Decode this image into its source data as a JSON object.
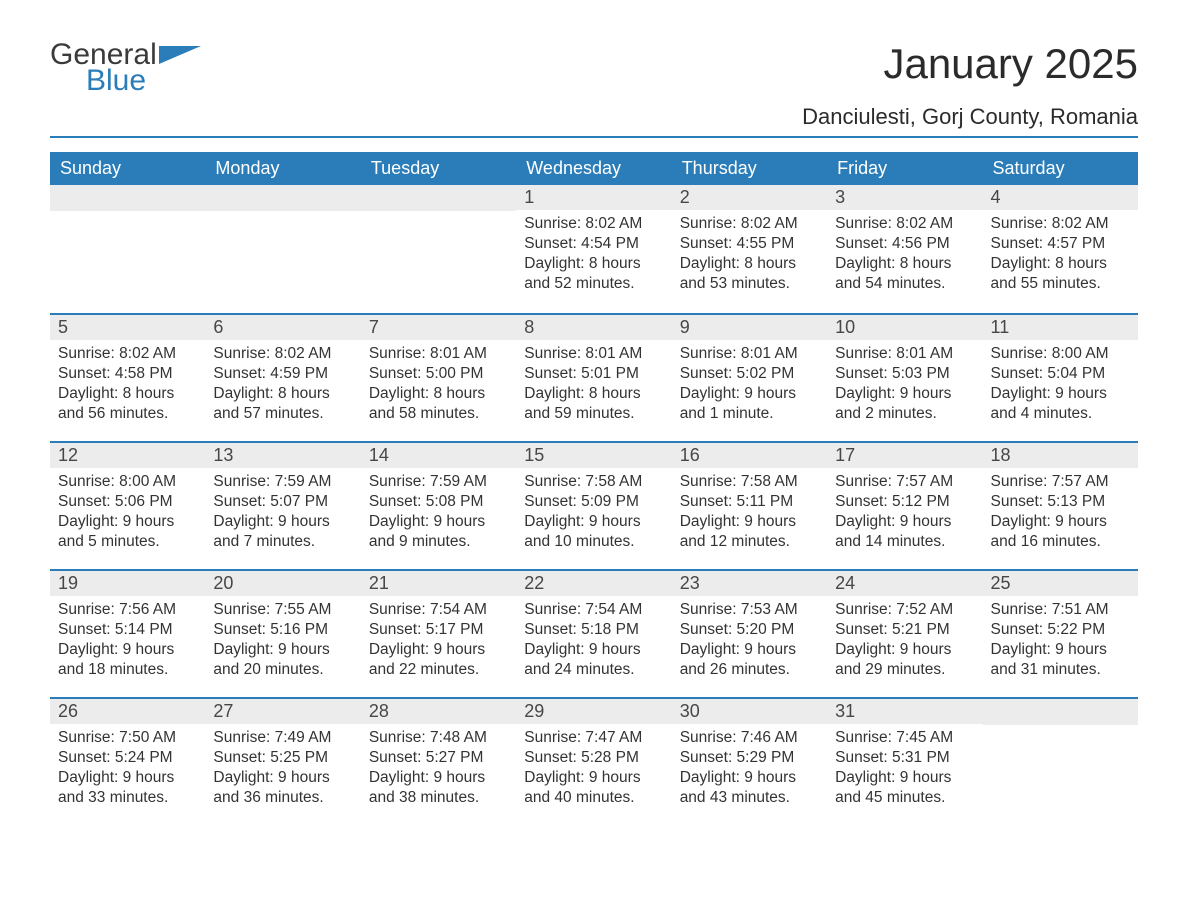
{
  "logo": {
    "general": "General",
    "blue": "Blue"
  },
  "title": "January 2025",
  "location": "Danciulesti, Gorj County, Romania",
  "colors": {
    "brand_blue": "#2a7db8",
    "header_text": "#ffffff",
    "daynum_bg": "#ececec",
    "daynum_text": "#474747",
    "body_text": "#333333",
    "page_bg": "#ffffff"
  },
  "weekdays": [
    "Sunday",
    "Monday",
    "Tuesday",
    "Wednesday",
    "Thursday",
    "Friday",
    "Saturday"
  ],
  "weeks": [
    [
      null,
      null,
      null,
      {
        "n": "1",
        "sunrise": "Sunrise: 8:02 AM",
        "sunset": "Sunset: 4:54 PM",
        "day1": "Daylight: 8 hours",
        "day2": "and 52 minutes."
      },
      {
        "n": "2",
        "sunrise": "Sunrise: 8:02 AM",
        "sunset": "Sunset: 4:55 PM",
        "day1": "Daylight: 8 hours",
        "day2": "and 53 minutes."
      },
      {
        "n": "3",
        "sunrise": "Sunrise: 8:02 AM",
        "sunset": "Sunset: 4:56 PM",
        "day1": "Daylight: 8 hours",
        "day2": "and 54 minutes."
      },
      {
        "n": "4",
        "sunrise": "Sunrise: 8:02 AM",
        "sunset": "Sunset: 4:57 PM",
        "day1": "Daylight: 8 hours",
        "day2": "and 55 minutes."
      }
    ],
    [
      {
        "n": "5",
        "sunrise": "Sunrise: 8:02 AM",
        "sunset": "Sunset: 4:58 PM",
        "day1": "Daylight: 8 hours",
        "day2": "and 56 minutes."
      },
      {
        "n": "6",
        "sunrise": "Sunrise: 8:02 AM",
        "sunset": "Sunset: 4:59 PM",
        "day1": "Daylight: 8 hours",
        "day2": "and 57 minutes."
      },
      {
        "n": "7",
        "sunrise": "Sunrise: 8:01 AM",
        "sunset": "Sunset: 5:00 PM",
        "day1": "Daylight: 8 hours",
        "day2": "and 58 minutes."
      },
      {
        "n": "8",
        "sunrise": "Sunrise: 8:01 AM",
        "sunset": "Sunset: 5:01 PM",
        "day1": "Daylight: 8 hours",
        "day2": "and 59 minutes."
      },
      {
        "n": "9",
        "sunrise": "Sunrise: 8:01 AM",
        "sunset": "Sunset: 5:02 PM",
        "day1": "Daylight: 9 hours",
        "day2": "and 1 minute."
      },
      {
        "n": "10",
        "sunrise": "Sunrise: 8:01 AM",
        "sunset": "Sunset: 5:03 PM",
        "day1": "Daylight: 9 hours",
        "day2": "and 2 minutes."
      },
      {
        "n": "11",
        "sunrise": "Sunrise: 8:00 AM",
        "sunset": "Sunset: 5:04 PM",
        "day1": "Daylight: 9 hours",
        "day2": "and 4 minutes."
      }
    ],
    [
      {
        "n": "12",
        "sunrise": "Sunrise: 8:00 AM",
        "sunset": "Sunset: 5:06 PM",
        "day1": "Daylight: 9 hours",
        "day2": "and 5 minutes."
      },
      {
        "n": "13",
        "sunrise": "Sunrise: 7:59 AM",
        "sunset": "Sunset: 5:07 PM",
        "day1": "Daylight: 9 hours",
        "day2": "and 7 minutes."
      },
      {
        "n": "14",
        "sunrise": "Sunrise: 7:59 AM",
        "sunset": "Sunset: 5:08 PM",
        "day1": "Daylight: 9 hours",
        "day2": "and 9 minutes."
      },
      {
        "n": "15",
        "sunrise": "Sunrise: 7:58 AM",
        "sunset": "Sunset: 5:09 PM",
        "day1": "Daylight: 9 hours",
        "day2": "and 10 minutes."
      },
      {
        "n": "16",
        "sunrise": "Sunrise: 7:58 AM",
        "sunset": "Sunset: 5:11 PM",
        "day1": "Daylight: 9 hours",
        "day2": "and 12 minutes."
      },
      {
        "n": "17",
        "sunrise": "Sunrise: 7:57 AM",
        "sunset": "Sunset: 5:12 PM",
        "day1": "Daylight: 9 hours",
        "day2": "and 14 minutes."
      },
      {
        "n": "18",
        "sunrise": "Sunrise: 7:57 AM",
        "sunset": "Sunset: 5:13 PM",
        "day1": "Daylight: 9 hours",
        "day2": "and 16 minutes."
      }
    ],
    [
      {
        "n": "19",
        "sunrise": "Sunrise: 7:56 AM",
        "sunset": "Sunset: 5:14 PM",
        "day1": "Daylight: 9 hours",
        "day2": "and 18 minutes."
      },
      {
        "n": "20",
        "sunrise": "Sunrise: 7:55 AM",
        "sunset": "Sunset: 5:16 PM",
        "day1": "Daylight: 9 hours",
        "day2": "and 20 minutes."
      },
      {
        "n": "21",
        "sunrise": "Sunrise: 7:54 AM",
        "sunset": "Sunset: 5:17 PM",
        "day1": "Daylight: 9 hours",
        "day2": "and 22 minutes."
      },
      {
        "n": "22",
        "sunrise": "Sunrise: 7:54 AM",
        "sunset": "Sunset: 5:18 PM",
        "day1": "Daylight: 9 hours",
        "day2": "and 24 minutes."
      },
      {
        "n": "23",
        "sunrise": "Sunrise: 7:53 AM",
        "sunset": "Sunset: 5:20 PM",
        "day1": "Daylight: 9 hours",
        "day2": "and 26 minutes."
      },
      {
        "n": "24",
        "sunrise": "Sunrise: 7:52 AM",
        "sunset": "Sunset: 5:21 PM",
        "day1": "Daylight: 9 hours",
        "day2": "and 29 minutes."
      },
      {
        "n": "25",
        "sunrise": "Sunrise: 7:51 AM",
        "sunset": "Sunset: 5:22 PM",
        "day1": "Daylight: 9 hours",
        "day2": "and 31 minutes."
      }
    ],
    [
      {
        "n": "26",
        "sunrise": "Sunrise: 7:50 AM",
        "sunset": "Sunset: 5:24 PM",
        "day1": "Daylight: 9 hours",
        "day2": "and 33 minutes."
      },
      {
        "n": "27",
        "sunrise": "Sunrise: 7:49 AM",
        "sunset": "Sunset: 5:25 PM",
        "day1": "Daylight: 9 hours",
        "day2": "and 36 minutes."
      },
      {
        "n": "28",
        "sunrise": "Sunrise: 7:48 AM",
        "sunset": "Sunset: 5:27 PM",
        "day1": "Daylight: 9 hours",
        "day2": "and 38 minutes."
      },
      {
        "n": "29",
        "sunrise": "Sunrise: 7:47 AM",
        "sunset": "Sunset: 5:28 PM",
        "day1": "Daylight: 9 hours",
        "day2": "and 40 minutes."
      },
      {
        "n": "30",
        "sunrise": "Sunrise: 7:46 AM",
        "sunset": "Sunset: 5:29 PM",
        "day1": "Daylight: 9 hours",
        "day2": "and 43 minutes."
      },
      {
        "n": "31",
        "sunrise": "Sunrise: 7:45 AM",
        "sunset": "Sunset: 5:31 PM",
        "day1": "Daylight: 9 hours",
        "day2": "and 45 minutes."
      },
      null
    ]
  ]
}
